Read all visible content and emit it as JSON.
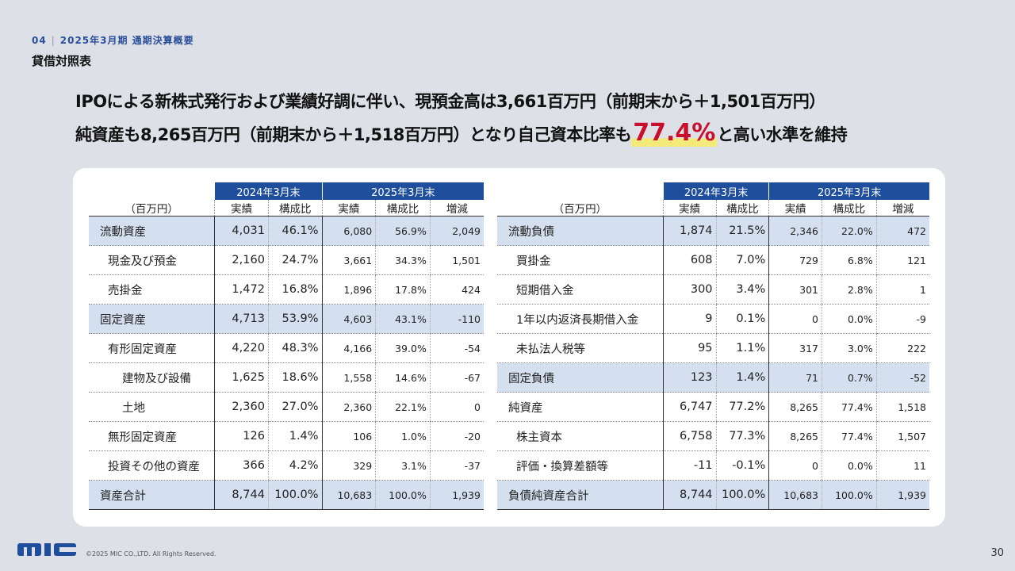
{
  "header": {
    "section_number": "04",
    "section_title": "2025年3月期 通期決算概要",
    "page_title": "貸借対照表"
  },
  "headline": {
    "line1": "IPOによる新株式発行および業績好調に伴い、現預金高は3,661百万円（前期末から＋1,501百万円）",
    "line2_prefix": "純資産も8,265百万円（前期末から＋1,518百万円）となり自己資本比率も",
    "line2_highlight": "77.4%",
    "line2_suffix": "と高い水準を維持",
    "highlight_color": "#c8102e"
  },
  "tables": {
    "unit_label": "（百万円）",
    "period_prev": "2024年3月末",
    "period_curr": "2025年3月末",
    "col_actual": "実績",
    "col_ratio": "構成比",
    "col_change": "増減",
    "assets": [
      {
        "name": "流動資産",
        "prev": "4,031",
        "prev_ratio": "46.1%",
        "curr": "6,080",
        "curr_ratio": "56.9%",
        "change": "2,049"
      },
      {
        "name": "現金及び預金",
        "prev": "2,160",
        "prev_ratio": "24.7%",
        "curr": "3,661",
        "curr_ratio": "34.3%",
        "change": "1,501"
      },
      {
        "name": "売掛金",
        "prev": "1,472",
        "prev_ratio": "16.8%",
        "curr": "1,896",
        "curr_ratio": "17.8%",
        "change": "424"
      },
      {
        "name": "固定資産",
        "prev": "4,713",
        "prev_ratio": "53.9%",
        "curr": "4,603",
        "curr_ratio": "43.1%",
        "change": "-110"
      },
      {
        "name": "有形固定資産",
        "prev": "4,220",
        "prev_ratio": "48.3%",
        "curr": "4,166",
        "curr_ratio": "39.0%",
        "change": "-54"
      },
      {
        "name": "建物及び設備",
        "prev": "1,625",
        "prev_ratio": "18.6%",
        "curr": "1,558",
        "curr_ratio": "14.6%",
        "change": "-67"
      },
      {
        "name": "土地",
        "prev": "2,360",
        "prev_ratio": "27.0%",
        "curr": "2,360",
        "curr_ratio": "22.1%",
        "change": "0"
      },
      {
        "name": "無形固定資産",
        "prev": "126",
        "prev_ratio": "1.4%",
        "curr": "106",
        "curr_ratio": "1.0%",
        "change": "-20"
      },
      {
        "name": "投資その他の資産",
        "prev": "366",
        "prev_ratio": "4.2%",
        "curr": "329",
        "curr_ratio": "3.1%",
        "change": "-37"
      },
      {
        "name": "資産合計",
        "prev": "8,744",
        "prev_ratio": "100.0%",
        "curr": "10,683",
        "curr_ratio": "100.0%",
        "change": "1,939"
      }
    ],
    "liabilities": [
      {
        "name": "流動負債",
        "prev": "1,874",
        "prev_ratio": "21.5%",
        "curr": "2,346",
        "curr_ratio": "22.0%",
        "change": "472"
      },
      {
        "name": "買掛金",
        "prev": "608",
        "prev_ratio": "7.0%",
        "curr": "729",
        "curr_ratio": "6.8%",
        "change": "121"
      },
      {
        "name": "短期借入金",
        "prev": "300",
        "prev_ratio": "3.4%",
        "curr": "301",
        "curr_ratio": "2.8%",
        "change": "1"
      },
      {
        "name": "1年以内返済長期借入金",
        "prev": "9",
        "prev_ratio": "0.1%",
        "curr": "0",
        "curr_ratio": "0.0%",
        "change": "-9"
      },
      {
        "name": "未払法人税等",
        "prev": "95",
        "prev_ratio": "1.1%",
        "curr": "317",
        "curr_ratio": "3.0%",
        "change": "222"
      },
      {
        "name": "固定負債",
        "prev": "123",
        "prev_ratio": "1.4%",
        "curr": "71",
        "curr_ratio": "0.7%",
        "change": "-52"
      },
      {
        "name": "純資産",
        "prev": "6,747",
        "prev_ratio": "77.2%",
        "curr": "8,265",
        "curr_ratio": "77.4%",
        "change": "1,518"
      },
      {
        "name": "株主資本",
        "prev": "6,758",
        "prev_ratio": "77.3%",
        "curr": "8,265",
        "curr_ratio": "77.4%",
        "change": "1,507"
      },
      {
        "name": "評価・換算差額等",
        "prev": "-11",
        "prev_ratio": "-0.1%",
        "curr": "0",
        "curr_ratio": "0.0%",
        "change": "11"
      },
      {
        "name": "負債純資産合計",
        "prev": "8,744",
        "prev_ratio": "100.0%",
        "curr": "10,683",
        "curr_ratio": "100.0%",
        "change": "1,939"
      }
    ]
  },
  "footer": {
    "logo_text": "MIC",
    "copyright": "©2025 MIC CO.,LTD. All Rights Reserved.",
    "page_number": "30"
  },
  "colors": {
    "accent": "#1f4e9c",
    "row_highlight": "#d4dff0",
    "background": "#dde0e6"
  }
}
